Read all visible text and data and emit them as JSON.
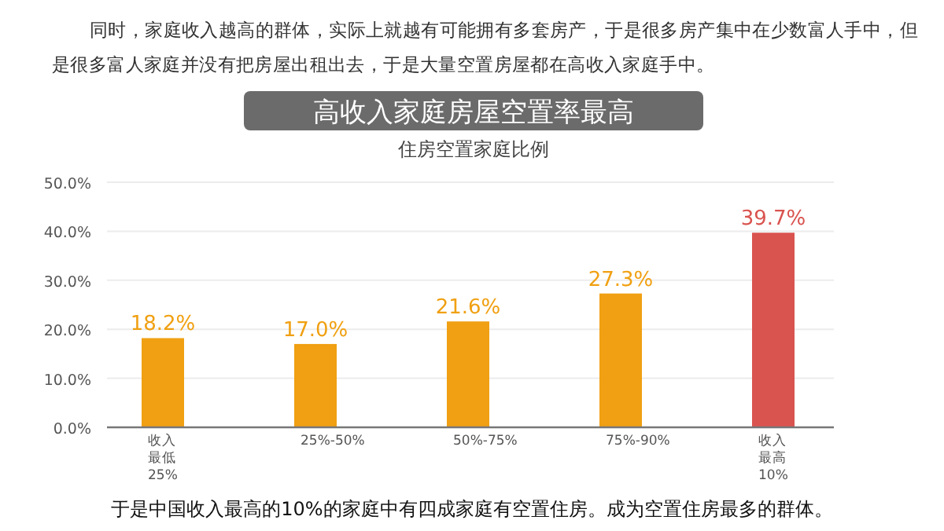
{
  "chart_data": {
    "type": "bar",
    "title": "高收入家庭房屋空置率最高",
    "subtitle": "住房空置家庭比例",
    "annotations": [
      "同时，家庭收入越高的群体，实际上就越有可能拥有多套房产，于是很多房产集中在少数富人手中，但是很多富人家庭并没有把房屋出租出去，于是大量空置房屋都在高收入家庭手中。",
      "于是中国收入最高的10%的家庭中有四成家庭有空置住房。成为空置住房最多的群体。"
    ],
    "categories": [
      "收入最低25%",
      "25%-50%",
      "50%-75%",
      "75%-90%",
      "收入最高10%"
    ],
    "values": [
      18.2,
      17.0,
      21.6,
      27.3,
      39.7
    ],
    "value_labels": [
      "18.2%",
      "17.0%",
      "21.6%",
      "27.3%",
      "39.7%"
    ],
    "colors": [
      "#f0a012",
      "#f0a012",
      "#f0a012",
      "#f0a012",
      "#d9534f"
    ],
    "ylim": [
      0,
      50
    ],
    "yticks": [
      {
        "value": 0,
        "label": "0.0%"
      },
      {
        "value": 10,
        "label": "10.0%"
      },
      {
        "value": 20,
        "label": "20.0%"
      },
      {
        "value": 30,
        "label": "30.0%"
      },
      {
        "value": 40,
        "label": "40.0%"
      },
      {
        "value": 50,
        "label": "50.0%"
      }
    ],
    "grid": "y"
  }
}
